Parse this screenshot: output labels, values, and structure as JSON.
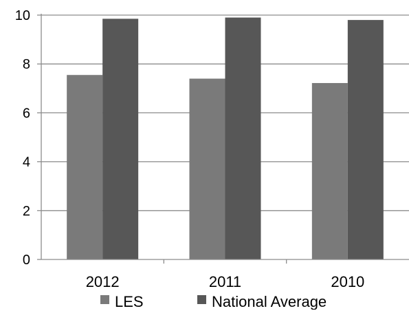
{
  "chart_data": {
    "type": "bar",
    "categories": [
      "2012",
      "2011",
      "2010"
    ],
    "series": [
      {
        "name": "LES",
        "values": [
          7.55,
          7.4,
          7.22
        ],
        "color": "#7a7a7a"
      },
      {
        "name": "National Average",
        "values": [
          9.85,
          9.9,
          9.8
        ],
        "color": "#575757"
      }
    ],
    "ylim": [
      0,
      10
    ],
    "yticks": [
      0,
      2,
      4,
      6,
      8,
      10
    ],
    "grid": true,
    "legend_position": "bottom",
    "title": "",
    "xlabel": "",
    "ylabel": ""
  }
}
